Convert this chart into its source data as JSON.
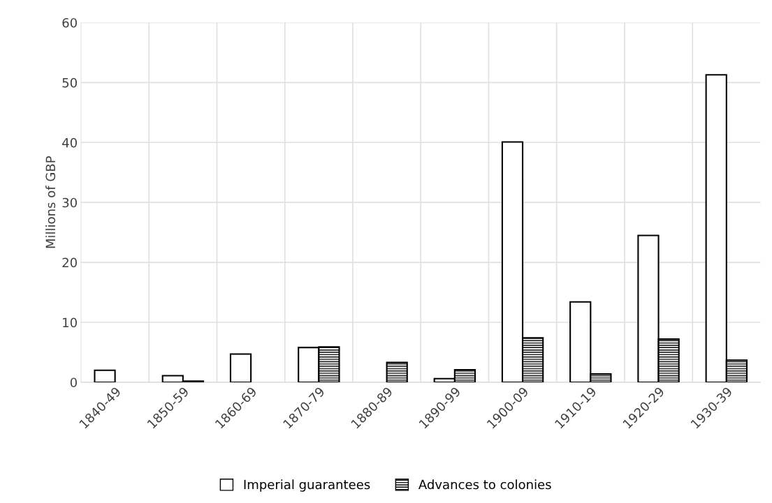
{
  "chart_data": {
    "type": "bar",
    "ylabel": "Millions of GBP",
    "categories": [
      "1840-49",
      "1850-59",
      "1860-69",
      "1870-79",
      "1880-89",
      "1890-99",
      "1900-09",
      "1910-19",
      "1920-29",
      "1930-39"
    ],
    "series": [
      {
        "name": "Imperial guarantees",
        "color": "#000000",
        "values": [
          2.0,
          1.1,
          4.7,
          5.8,
          null,
          0.6,
          40.1,
          13.4,
          24.5,
          51.3
        ]
      },
      {
        "name": "Advances to colonies",
        "color": "#000000",
        "values": [
          null,
          0.2,
          null,
          5.9,
          3.3,
          2.1,
          7.4,
          1.4,
          7.2,
          3.7
        ]
      }
    ],
    "ylim": [
      0,
      60
    ],
    "yticks": [
      0,
      10,
      20,
      30,
      40,
      50,
      60
    ],
    "grid": true,
    "legend": "bottom"
  }
}
